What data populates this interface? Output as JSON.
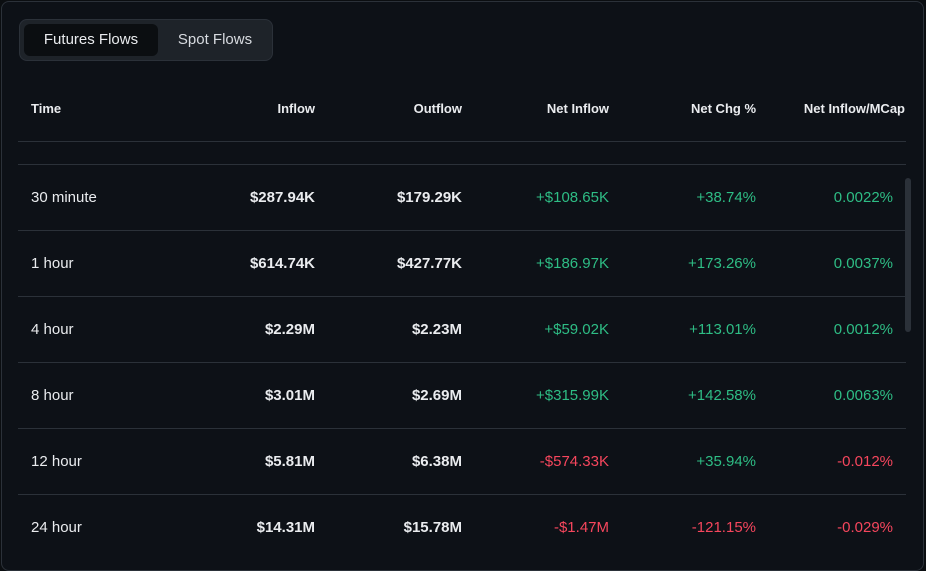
{
  "tabs": [
    {
      "label": "Futures Flows",
      "active": true
    },
    {
      "label": "Spot Flows",
      "active": false
    }
  ],
  "columns": {
    "time": "Time",
    "inflow": "Inflow",
    "outflow": "Outflow",
    "net_inflow": "Net Inflow",
    "net_chg": "Net Chg %",
    "net_inflow_mcap": "Net Inflow/MCap"
  },
  "rows": [
    {
      "time": "30 minute",
      "inflow": "$287.94K",
      "outflow": "$179.29K",
      "net_inflow": "+$108.65K",
      "net_chg": "+38.74%",
      "mcap": "0.0022%",
      "net_sign": "pos",
      "chg_sign": "pos",
      "mcap_sign": "pos"
    },
    {
      "time": "1 hour",
      "inflow": "$614.74K",
      "outflow": "$427.77K",
      "net_inflow": "+$186.97K",
      "net_chg": "+173.26%",
      "mcap": "0.0037%",
      "net_sign": "pos",
      "chg_sign": "pos",
      "mcap_sign": "pos"
    },
    {
      "time": "4 hour",
      "inflow": "$2.29M",
      "outflow": "$2.23M",
      "net_inflow": "+$59.02K",
      "net_chg": "+113.01%",
      "mcap": "0.0012%",
      "net_sign": "pos",
      "chg_sign": "pos",
      "mcap_sign": "pos"
    },
    {
      "time": "8 hour",
      "inflow": "$3.01M",
      "outflow": "$2.69M",
      "net_inflow": "+$315.99K",
      "net_chg": "+142.58%",
      "mcap": "0.0063%",
      "net_sign": "pos",
      "chg_sign": "pos",
      "mcap_sign": "pos"
    },
    {
      "time": "12 hour",
      "inflow": "$5.81M",
      "outflow": "$6.38M",
      "net_inflow": "-$574.33K",
      "net_chg": "+35.94%",
      "mcap": "-0.012%",
      "net_sign": "neg",
      "chg_sign": "pos",
      "mcap_sign": "neg"
    },
    {
      "time": "24 hour",
      "inflow": "$14.31M",
      "outflow": "$15.78M",
      "net_inflow": "-$1.47M",
      "net_chg": "-121.15%",
      "mcap": "-0.029%",
      "net_sign": "neg",
      "chg_sign": "neg",
      "mcap_sign": "neg"
    }
  ],
  "colors": {
    "positive": "#2ebd85",
    "negative": "#f6465d",
    "background": "#0d1117",
    "divider": "#2b3139"
  }
}
